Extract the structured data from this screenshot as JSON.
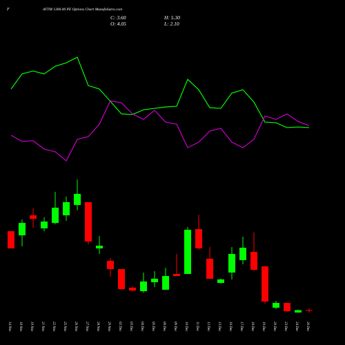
{
  "chart_data": [
    {
      "type": "line",
      "symbol": "F",
      "title": "ATTM 1300.00 PE Options Chart MunafaSutra.com",
      "info": [
        "C: 3.60",
        "H: 5.30",
        "O: 4.05",
        "L: 2.10"
      ],
      "ylim": [
        0,
        100
      ],
      "series": [
        {
          "color": "#00ff00",
          "values": [
            65.3,
            78.2,
            80.6,
            78.2,
            84.7,
            87.6,
            92.4,
            68.2,
            65.3,
            54.7,
            44.1,
            43.5,
            47.6,
            48.8,
            50.0,
            50.6,
            73.5,
            64.7,
            49.4,
            48.8,
            61.8,
            64.7,
            54.1,
            37.1,
            36.5,
            32.4,
            32.9,
            32.4
          ]
        },
        {
          "color": "#cc00cc",
          "values": [
            25.9,
            20.6,
            21.2,
            14.1,
            11.8,
            4.1,
            22.4,
            24.7,
            35.3,
            55.3,
            53.5,
            44.1,
            39.4,
            47.1,
            37.1,
            35.3,
            15.3,
            20.0,
            29.4,
            31.8,
            20.0,
            15.3,
            22.4,
            42.4,
            39.4,
            44.1,
            37.6,
            34.1
          ]
        }
      ]
    },
    {
      "type": "candlestick",
      "categories": [
        "14 Nov",
        "18 Nov",
        "19 Nov",
        "21 Nov",
        "22 Nov",
        "25 Nov",
        "26 Nov",
        "27 Nov",
        "28 Nov",
        "29 Nov",
        "02 Dec",
        "03 Dec",
        "04 Dec",
        "05 Dec",
        "06 Dec",
        "09 Dec",
        "10 Dec",
        "11 Dec",
        "12 Dec",
        "13 Dec",
        "16 Dec",
        "17 Dec",
        "18 Dec",
        "19 Dec",
        "20 Dec",
        "23 Dec",
        "24 Dec",
        "26 Dec"
      ],
      "open": [
        65.1,
        61.9,
        77.4,
        67.3,
        71.5,
        77.4,
        85.4,
        87.6,
        51.8,
        42.2,
        35.8,
        21.4,
        18.7,
        25.6,
        19.8,
        32.0,
        32.0,
        66.7,
        43.8,
        25.1,
        33.1,
        42.7,
        49.1,
        37.9,
        5.9,
        9.6,
        2.2,
        4.05
      ],
      "high": [
        65.1,
        74.2,
        82.8,
        75.8,
        95.6,
        91.8,
        105.2,
        87.6,
        61.4,
        44.3,
        35.8,
        22.4,
        33.1,
        34.2,
        36.8,
        47.5,
        68.3,
        77.9,
        52.9,
        28.3,
        52.9,
        60.9,
        64.1,
        37.9,
        11.2,
        9.6,
        4.5,
        5.3
      ],
      "low": [
        51.8,
        53.4,
        67.8,
        65.1,
        70.5,
        73.1,
        81.2,
        55.0,
        47.5,
        29.9,
        19.8,
        18.2,
        17.6,
        21.9,
        19.8,
        30.4,
        32.0,
        50.7,
        28.3,
        24.6,
        27.8,
        39.5,
        34.7,
        9.1,
        4.8,
        2.7,
        2.0,
        2.1
      ],
      "close": [
        51.8,
        71.5,
        74.7,
        72.6,
        83.3,
        87.6,
        94.0,
        57.1,
        53.9,
        35.8,
        20.3,
        19.2,
        26.2,
        28.3,
        30.4,
        30.4,
        66.2,
        51.8,
        28.3,
        27.8,
        47.5,
        52.3,
        35.2,
        10.7,
        9.6,
        3.2,
        4.0,
        3.6
      ],
      "up_color": "#00ff00",
      "down_color": "#ff0000",
      "ylim": [
        0,
        110
      ]
    }
  ]
}
